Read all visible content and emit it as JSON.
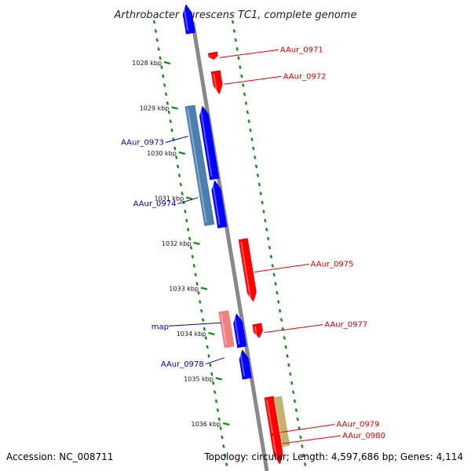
{
  "title": "Arthrobacter aurescens TC1, complete genome",
  "footer": {
    "accession": "Accession: NC_008711",
    "topology": "Topology: circular; Length: 4,597,686 bp; Genes: 4,114"
  },
  "colors": {
    "forward": "#ff0000",
    "reverse": "#0000ff",
    "forward_label": "#e00000",
    "reverse_label": "#0000cc",
    "steelblue": "#4a7fb0",
    "pink": "#f08080",
    "khaki": "#c2b470",
    "dots": "#1a8a1a",
    "backbone": "#888888"
  },
  "ticks": [
    {
      "label": "1028 kbp",
      "kbp": 1028
    },
    {
      "label": "1029 kbp",
      "kbp": 1029
    },
    {
      "label": "1030 kbp",
      "kbp": 1030
    },
    {
      "label": "1031 kbp",
      "kbp": 1031
    },
    {
      "label": "1032 kbp",
      "kbp": 1032
    },
    {
      "label": "1033 kbp",
      "kbp": 1033
    },
    {
      "label": "1034 kbp",
      "kbp": 1034
    },
    {
      "label": "1035 kbp",
      "kbp": 1035
    },
    {
      "label": "1036 kbp",
      "kbp": 1036
    }
  ],
  "genes": [
    {
      "label": "AAur_0971",
      "strand": "+",
      "start_kbp": 1027.77,
      "end_kbp": 1027.93
    },
    {
      "label": "AAur_0972",
      "strand": "+",
      "start_kbp": 1028.18,
      "end_kbp": 1028.7
    },
    {
      "label": "AAur_0975",
      "strand": "+",
      "start_kbp": 1031.9,
      "end_kbp": 1033.3
    },
    {
      "label": "AAur_0977",
      "strand": "+",
      "start_kbp": 1033.78,
      "end_kbp": 1034.1
    },
    {
      "label": "AAur_0979",
      "strand": "+",
      "start_kbp": 1035.4,
      "end_kbp": 1036.9
    },
    {
      "label": "AAur_0980",
      "strand": "+",
      "start_kbp": 1036.2,
      "end_kbp": 1036.6
    },
    {
      "label": "AAur_0973",
      "strand": "-",
      "start_kbp": 1028.95,
      "end_kbp": 1030.58
    },
    {
      "label": "AAur_0974",
      "strand": "-",
      "start_kbp": 1030.6,
      "end_kbp": 1031.65
    },
    {
      "label": "AAur_0978",
      "strand": "-",
      "start_kbp": 1034.35,
      "end_kbp": 1035.0
    },
    {
      "label": "",
      "strand": "-",
      "start_kbp": 1033.55,
      "end_kbp": 1034.3
    },
    {
      "label": "",
      "strand": "-",
      "start_kbp": 1026.7,
      "end_kbp": 1027.35
    }
  ],
  "features": [
    {
      "label": "",
      "type": "steelblue",
      "start_kbp": 1028.95,
      "end_kbp": 1031.6
    },
    {
      "label": "map",
      "type": "pink",
      "start_kbp": 1033.5,
      "end_kbp": 1034.3
    },
    {
      "label": "",
      "type": "khaki",
      "start_kbp": 1035.4,
      "end_kbp": 1036.5
    }
  ]
}
